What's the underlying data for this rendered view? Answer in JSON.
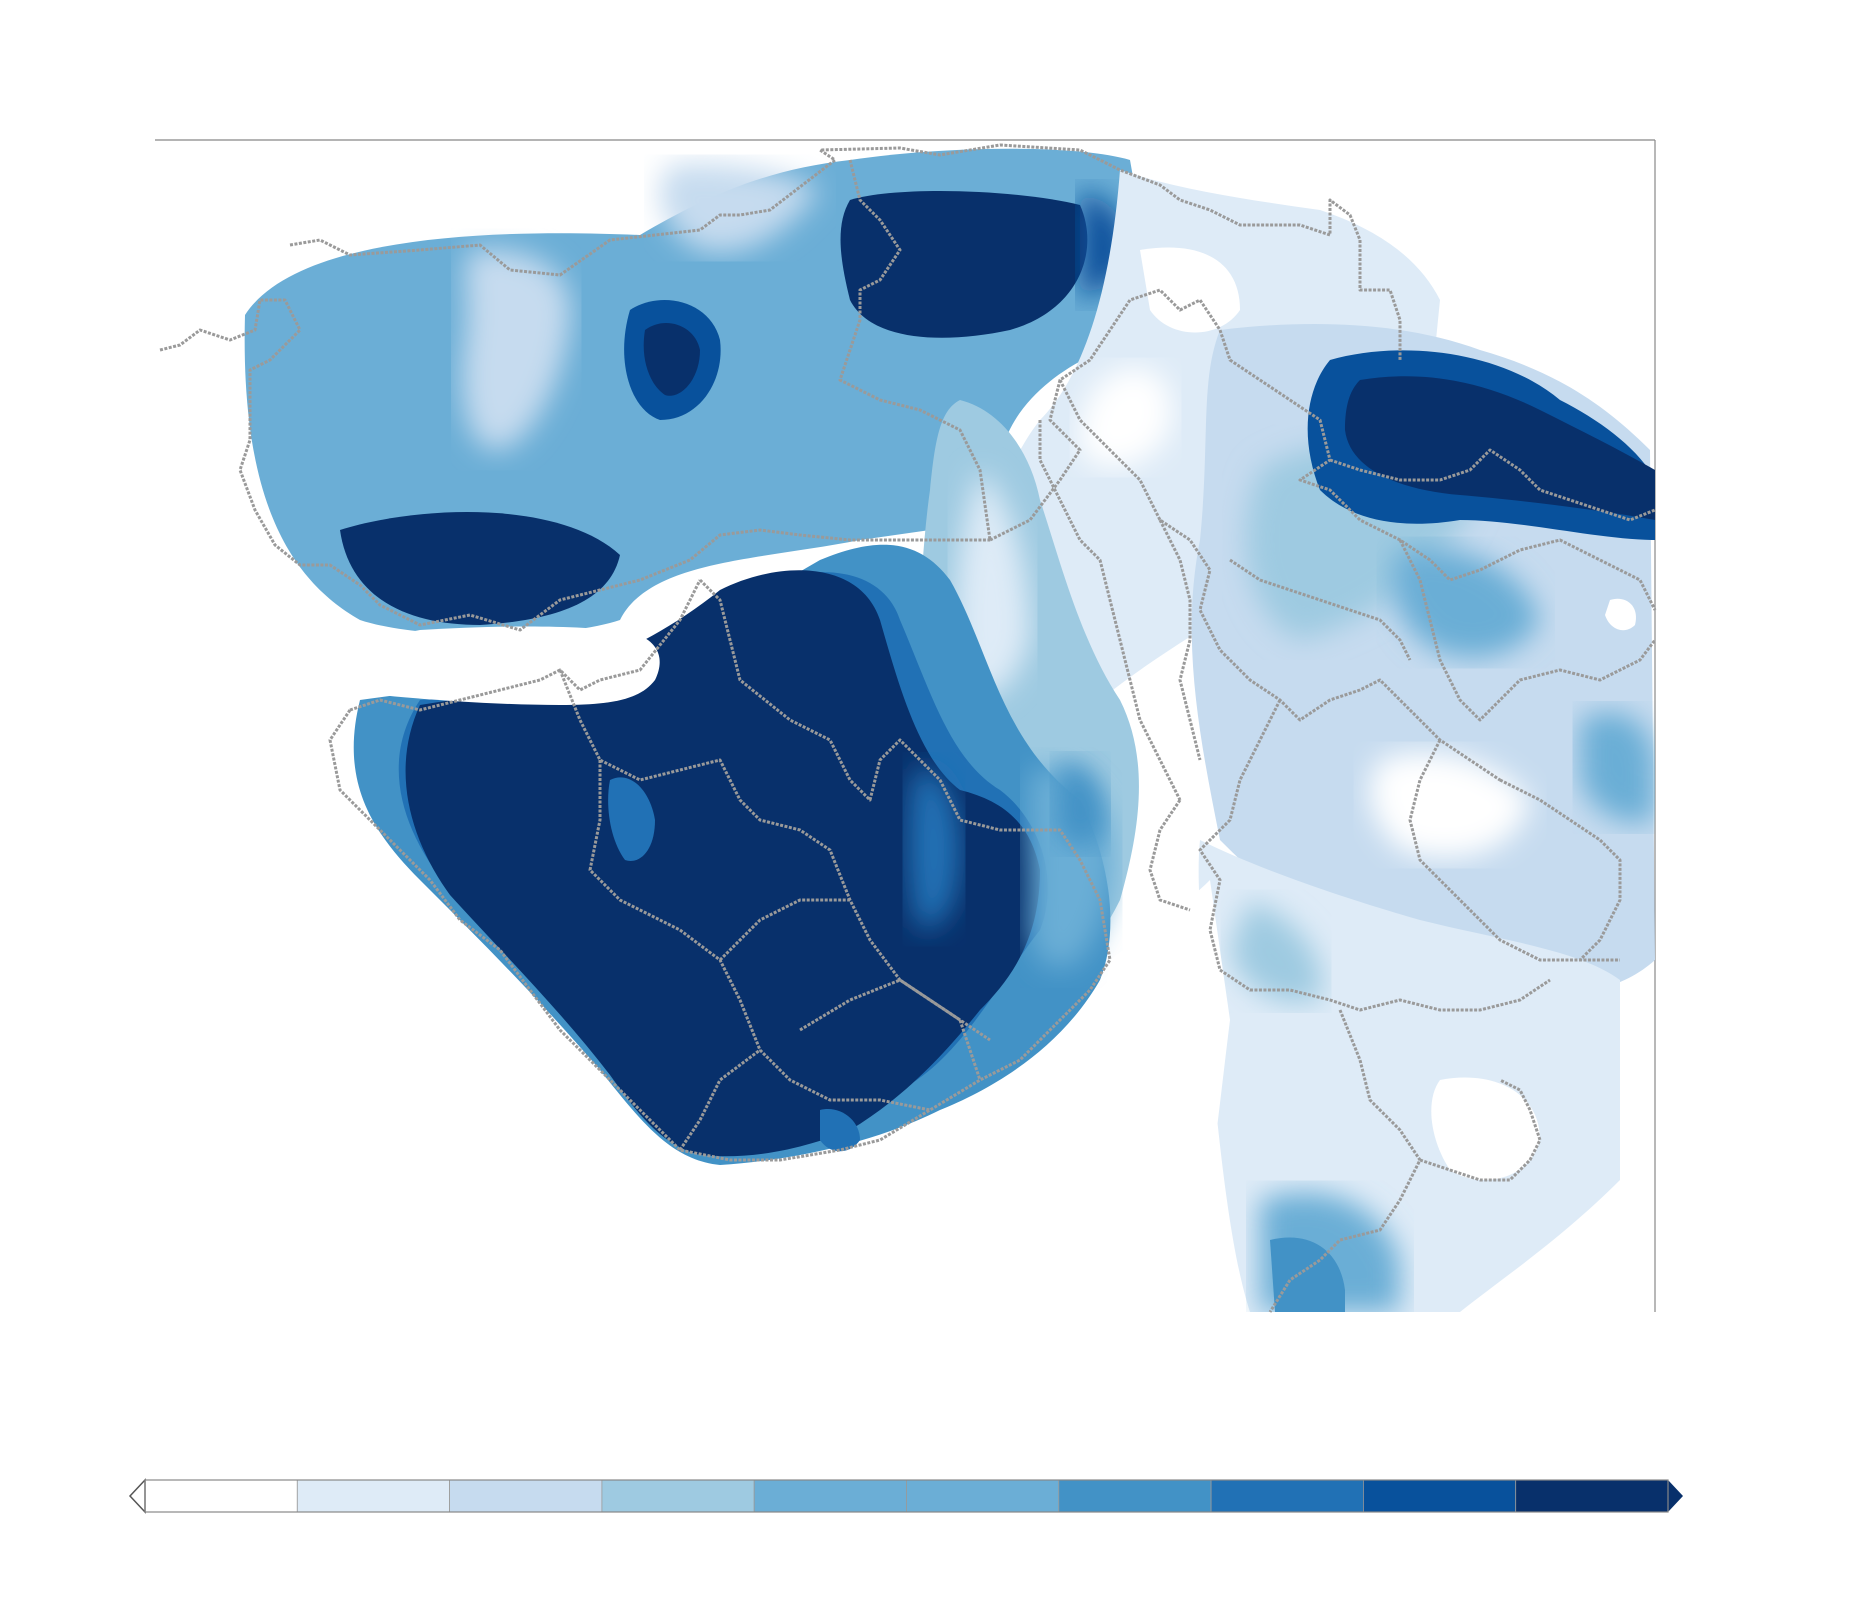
{
  "map": {
    "color_scale": [
      "#ffffff",
      "#deebf7",
      "#c6dbef",
      "#9ecae1",
      "#6baed6",
      "#6baed6",
      "#4292c6",
      "#2171b5",
      "#08519c",
      "#08306b"
    ],
    "boundary_color": "#9a9a9a",
    "background": "#ffffff"
  },
  "colorbar": {
    "bins": [
      "#ffffff",
      "#deebf7",
      "#c6dbef",
      "#9ecae1",
      "#6baed6",
      "#6baed6",
      "#4292c6",
      "#2171b5",
      "#08519c",
      "#08306b"
    ],
    "extend_low_color": "#ffffff",
    "extend_high_color": "#08306b",
    "tick_labels": []
  }
}
